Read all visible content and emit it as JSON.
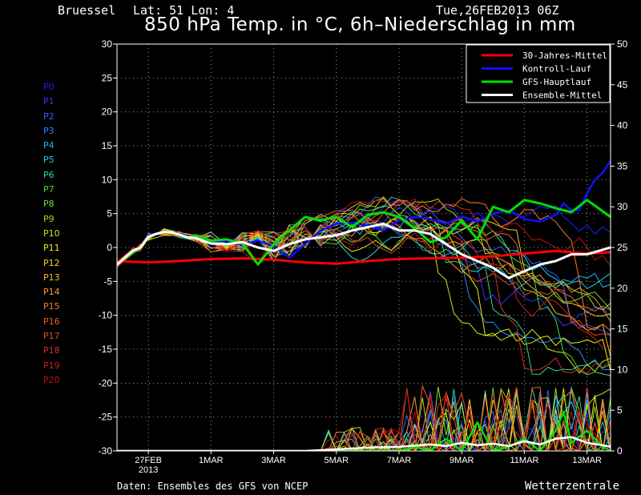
{
  "header": {
    "location": "Bruessel",
    "coords": "Lat: 51 Lon: 4",
    "datetime": "Tue,26FEB2013 06Z",
    "title": "850 hPa Temp. in °C, 6h–Niederschlag in mm"
  },
  "footer": {
    "source": "Daten: Ensembles des GFS von NCEP",
    "brand": "Wetterzentrale"
  },
  "members": [
    {
      "label": "P0",
      "color": "#2020ff"
    },
    {
      "label": "P1",
      "color": "#2a3cff"
    },
    {
      "label": "P2",
      "color": "#3060ff"
    },
    {
      "label": "P3",
      "color": "#2e8aff"
    },
    {
      "label": "P4",
      "color": "#22b4ff"
    },
    {
      "label": "P5",
      "color": "#1ed2e6"
    },
    {
      "label": "P6",
      "color": "#28dc96"
    },
    {
      "label": "P7",
      "color": "#46e046"
    },
    {
      "label": "P8",
      "color": "#6ae030"
    },
    {
      "label": "P9",
      "color": "#96e024"
    },
    {
      "label": "P10",
      "color": "#c8e81a"
    },
    {
      "label": "P11",
      "color": "#f0f010"
    },
    {
      "label": "P12",
      "color": "#f8d020"
    },
    {
      "label": "P13",
      "color": "#f8b428"
    },
    {
      "label": "P14",
      "color": "#f89830"
    },
    {
      "label": "P15",
      "color": "#f87c30"
    },
    {
      "label": "P16",
      "color": "#f06030"
    },
    {
      "label": "P17",
      "color": "#e44828"
    },
    {
      "label": "P18",
      "color": "#d83020"
    },
    {
      "label": "P19",
      "color": "#cc2018"
    },
    {
      "label": "P20",
      "color": "#c01010"
    }
  ],
  "chart_data": {
    "type": "line",
    "title": "850 hPa Temp. in °C, 6h–Niederschlag in mm",
    "x_ticks": [
      {
        "day": 1,
        "label": "27FEB",
        "sublabel": "2013"
      },
      {
        "day": 3,
        "label": "1MAR"
      },
      {
        "day": 5,
        "label": "3MAR"
      },
      {
        "day": 7,
        "label": "5MAR"
      },
      {
        "day": 9,
        "label": "7MAR"
      },
      {
        "day": 11,
        "label": "9MAR"
      },
      {
        "day": 13,
        "label": "11MAR"
      },
      {
        "day": 15,
        "label": "13MAR"
      }
    ],
    "xlim": [
      0,
      15.75
    ],
    "ylim_left": [
      -30,
      30
    ],
    "yticks_left": [
      -30,
      -25,
      -20,
      -15,
      -10,
      -5,
      0,
      5,
      10,
      15,
      20,
      25,
      30
    ],
    "ylim_right": [
      0,
      50
    ],
    "yticks_right": [
      0,
      5,
      10,
      15,
      20,
      25,
      30,
      35,
      40,
      45,
      50
    ],
    "grid": true,
    "legend_position": "top-right",
    "highlighted_series": [
      {
        "name": "30-Jahres-Mittel",
        "color": "#ff0000",
        "width": 3,
        "axis": "left",
        "x": [
          0,
          1,
          2,
          3,
          4,
          5,
          6,
          7,
          8,
          9,
          10,
          11,
          12,
          13,
          14,
          15,
          15.75
        ],
        "y": [
          -2,
          -2.2,
          -2.0,
          -1.7,
          -1.6,
          -1.8,
          -2.2,
          -2.4,
          -2.0,
          -1.7,
          -1.6,
          -1.5,
          -1.3,
          -0.9,
          -0.5,
          -0.9,
          -0.7
        ]
      },
      {
        "name": "Kontroll-Lauf",
        "color": "#1010ff",
        "width": 2.5,
        "axis": "left",
        "x": [
          0,
          0.5,
          0.75,
          1,
          1.25,
          1.5,
          1.75,
          2,
          2.25,
          2.5,
          3,
          3.5,
          4,
          4.5,
          5,
          5.5,
          6,
          6.5,
          7,
          7.5,
          8,
          8.5,
          9,
          9.5,
          10,
          10.5,
          11,
          11.5,
          12,
          12.5,
          13,
          13.5,
          14,
          14.25,
          14.5,
          14.75,
          15,
          15.25,
          15.5,
          15.75
        ],
        "y": [
          -2.5,
          -0.5,
          0,
          1.8,
          2.1,
          2.4,
          2.2,
          2.0,
          1.7,
          1.4,
          0.8,
          1.0,
          0.4,
          1.0,
          0.2,
          -1.5,
          0.5,
          2.5,
          3.5,
          3.6,
          3.2,
          2.5,
          4.0,
          4.5,
          4.2,
          3.5,
          4.6,
          3.8,
          5.0,
          5.5,
          4.2,
          3.8,
          4.8,
          6.5,
          5.5,
          5.5,
          8.0,
          10.0,
          11.0,
          12.8
        ]
      },
      {
        "name": "GFS-Hauptlauf",
        "color": "#00e000",
        "width": 3,
        "axis": "left",
        "x": [
          0,
          0.5,
          0.75,
          1,
          1.25,
          1.5,
          1.75,
          2,
          2.25,
          2.5,
          3,
          3.5,
          4,
          4.5,
          5,
          5.5,
          6,
          6.5,
          7,
          7.5,
          8,
          8.5,
          9,
          9.5,
          10,
          10.5,
          11,
          11.5,
          12,
          12.5,
          13,
          13.5,
          14,
          14.5,
          15,
          15.75
        ],
        "y": [
          -2.5,
          -0.8,
          0,
          1.5,
          2.0,
          2.3,
          2.1,
          1.7,
          1.4,
          1.8,
          1.0,
          1.2,
          0.6,
          -2.5,
          0.5,
          2.5,
          4.5,
          4.0,
          4.5,
          3.0,
          4.8,
          5.2,
          4.5,
          2.8,
          0.8,
          1.5,
          4.0,
          1.2,
          6.0,
          5.2,
          7.0,
          6.5,
          5.8,
          5.2,
          7.0,
          4.5
        ]
      },
      {
        "name": "Ensemble-Mittel",
        "color": "#ffffff",
        "width": 3,
        "axis": "left",
        "x": [
          0,
          0.5,
          0.75,
          1,
          1.25,
          1.5,
          1.75,
          2,
          2.25,
          2.5,
          3,
          3.5,
          4,
          4.5,
          5,
          5.5,
          6,
          6.5,
          7,
          7.5,
          8,
          8.5,
          9,
          9.5,
          10,
          10.5,
          11,
          11.5,
          12,
          12.5,
          13,
          13.5,
          14,
          14.5,
          15,
          15.75
        ],
        "y": [
          -2.5,
          -0.5,
          0,
          1.6,
          2.0,
          2.3,
          2.2,
          1.9,
          1.5,
          1.4,
          0.6,
          0.5,
          0.8,
          0.0,
          -0.5,
          0.5,
          1.2,
          1.5,
          1.8,
          2.5,
          3.0,
          3.5,
          2.5,
          2.5,
          2.0,
          0.5,
          -1.0,
          -2.0,
          -3.0,
          -4.5,
          -3.5,
          -2.5,
          -2.0,
          -1.0,
          -1.0,
          0.0
        ]
      }
    ],
    "precip_mean": {
      "name": "Ensemble-Mittel",
      "axis": "right",
      "x": [
        0,
        1,
        2,
        3,
        4,
        5,
        6,
        7,
        8,
        9,
        10,
        10.5,
        11,
        11.5,
        12,
        12.5,
        13,
        13.5,
        14,
        14.5,
        15,
        15.5,
        15.75
      ],
      "y": [
        0,
        0,
        0,
        0,
        0,
        0,
        0,
        0.2,
        0.4,
        0.5,
        0.8,
        0.6,
        1.0,
        0.7,
        0.9,
        0.6,
        1.2,
        0.8,
        1.5,
        1.7,
        1.0,
        0.7,
        0.5
      ]
    },
    "precip_gfs": {
      "name": "GFS-Hauptlauf",
      "axis": "right",
      "x": [
        0,
        1,
        2,
        3,
        4,
        5,
        6,
        7,
        8,
        9,
        9.5,
        10,
        10.5,
        11,
        11.5,
        12,
        12.5,
        13,
        13.5,
        14,
        14.25,
        14.5,
        15,
        15.5,
        15.75
      ],
      "y": [
        0,
        0,
        0,
        0,
        0,
        0,
        0,
        0,
        0,
        0,
        0.5,
        0,
        1.5,
        0,
        3.5,
        0,
        0.5,
        1.5,
        0,
        2.5,
        4.8,
        1,
        2.5,
        0.5,
        0
      ]
    }
  }
}
